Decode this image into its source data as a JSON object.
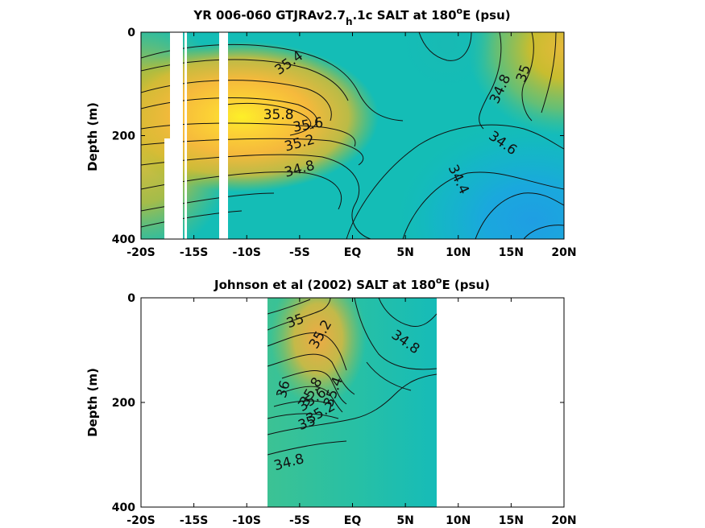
{
  "colors": {
    "fresh": "#1da6e0",
    "mid": "#14bcb4",
    "salty": "#f5c23a",
    "max": "#fcf01c"
  },
  "chart_data": [
    {
      "type": "heatmap",
      "title_main": "YR 006-060 GTJRAv2.7",
      "title_sub": "h",
      "title_rest": ".1c SALT at 180",
      "title_sup": "o",
      "title_end": "E (psu)",
      "xlabel": "",
      "ylabel": "Depth (m)",
      "xlim": [
        -20,
        20
      ],
      "ylim": [
        400,
        0
      ],
      "x_ticks": [
        -20,
        -15,
        -10,
        -5,
        0,
        5,
        10,
        15,
        20
      ],
      "x_tick_labels": [
        "-20S",
        "-15S",
        "-10S",
        "-5S",
        "EQ",
        "5N",
        "10N",
        "15N",
        "20N"
      ],
      "y_ticks": [
        0,
        200,
        400
      ],
      "y_tick_labels": [
        "0",
        "200",
        "400"
      ],
      "data_lat_range": [
        -20,
        20
      ],
      "missing_data_bands": [
        {
          "lat_from": -18.2,
          "lat_to": -17.0,
          "depth_from": 0,
          "depth_to": 400
        },
        {
          "lat_from": -18.8,
          "lat_to": -17.0,
          "depth_from": 205,
          "depth_to": 400
        },
        {
          "lat_from": -16.2,
          "lat_to": -15.2,
          "depth_from": 0,
          "depth_to": 400
        },
        {
          "lat_from": -12.8,
          "lat_to": -12.1,
          "depth_from": 0,
          "depth_to": 400
        }
      ],
      "contour_labels": [
        {
          "text": "35.4",
          "lat": -6.0,
          "depth": 60,
          "angle": -35
        },
        {
          "text": "35.8",
          "lat": -7.0,
          "depth": 160,
          "angle": 0
        },
        {
          "text": "35.6",
          "lat": -4.2,
          "depth": 180,
          "angle": -10
        },
        {
          "text": "35.2",
          "lat": -5.0,
          "depth": 215,
          "angle": -15
        },
        {
          "text": "34.8",
          "lat": -5.0,
          "depth": 265,
          "angle": -15
        },
        {
          "text": "34.8",
          "lat": 14.0,
          "depth": 110,
          "angle": -65
        },
        {
          "text": "35",
          "lat": 16.2,
          "depth": 80,
          "angle": -70
        },
        {
          "text": "34.6",
          "lat": 14.2,
          "depth": 215,
          "angle": 35
        },
        {
          "text": "34.4",
          "lat": 10.0,
          "depth": 285,
          "angle": 65
        }
      ]
    },
    {
      "type": "heatmap",
      "title_main": "Johnson et al (2002) SALT at 180",
      "title_sup": "o",
      "title_end": "E (psu)",
      "xlabel": "",
      "ylabel": "Depth (m)",
      "xlim": [
        -20,
        20
      ],
      "ylim": [
        400,
        0
      ],
      "x_ticks": [
        -20,
        -15,
        -10,
        -5,
        0,
        5,
        10,
        15,
        20
      ],
      "x_tick_labels": [
        "-20S",
        "-15S",
        "-10S",
        "-5S",
        "EQ",
        "5N",
        "10N",
        "15N",
        "20N"
      ],
      "y_ticks": [
        0,
        200,
        400
      ],
      "y_tick_labels": [
        "0",
        "200",
        "400"
      ],
      "data_lat_range": [
        -8,
        8
      ],
      "contour_labels": [
        {
          "text": "35",
          "lat": -5.4,
          "depth": 45,
          "angle": -20
        },
        {
          "text": "35.2",
          "lat": -3.0,
          "depth": 70,
          "angle": -60
        },
        {
          "text": "34.8",
          "lat": 5.0,
          "depth": 85,
          "angle": 35
        },
        {
          "text": "36",
          "lat": -6.5,
          "depth": 175,
          "angle": -75
        },
        {
          "text": "35.8",
          "lat": -3.9,
          "depth": 180,
          "angle": -60
        },
        {
          "text": "35.6",
          "lat": -3.8,
          "depth": 195,
          "angle": -35
        },
        {
          "text": "35.4",
          "lat": -1.8,
          "depth": 180,
          "angle": -70
        },
        {
          "text": "35.2",
          "lat": -3.0,
          "depth": 220,
          "angle": -30
        },
        {
          "text": "35",
          "lat": -4.3,
          "depth": 240,
          "angle": -20
        },
        {
          "text": "34.8",
          "lat": -6.0,
          "depth": 315,
          "angle": -15
        }
      ]
    }
  ]
}
